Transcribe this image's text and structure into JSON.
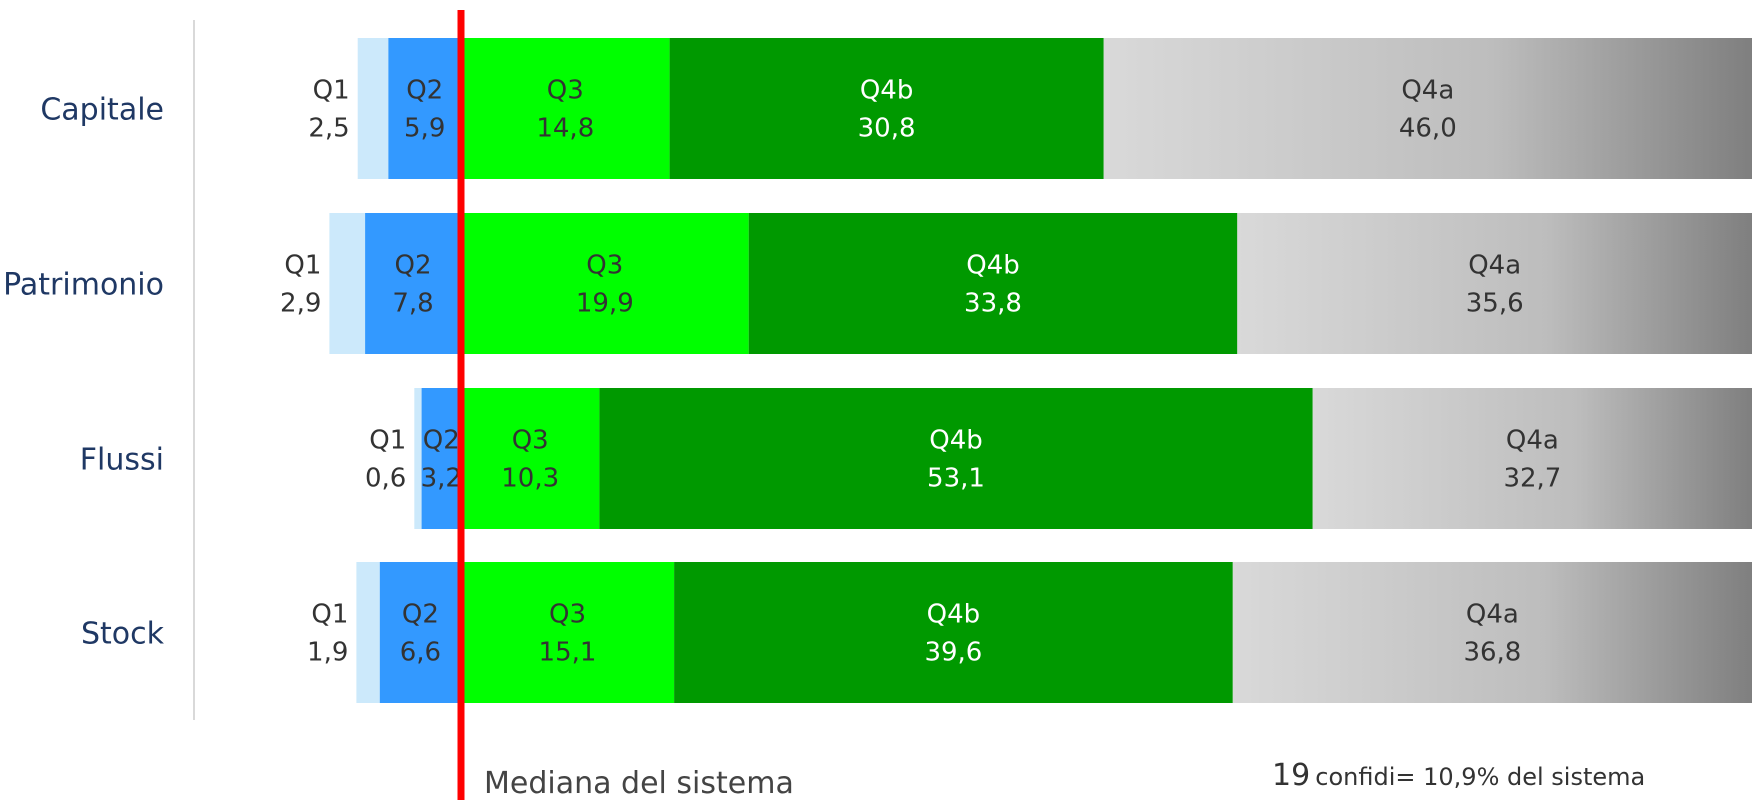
{
  "chart_data": {
    "type": "bar",
    "orientation": "horizontal",
    "stacked": true,
    "categories": [
      "Capitale",
      "Patrimonio",
      "Flussi",
      "Stock"
    ],
    "series": [
      {
        "name": "Q1",
        "values": [
          2.5,
          2.9,
          0.6,
          1.9
        ],
        "labels": [
          "2,5",
          "2,9",
          "0,6",
          "1,9"
        ],
        "color": "#cce9fb"
      },
      {
        "name": "Q2",
        "values": [
          5.9,
          7.8,
          3.2,
          6.6
        ],
        "labels": [
          "5,9",
          "7,8",
          "3,2",
          "6,6"
        ],
        "color": "#3399ff"
      },
      {
        "name": "Q3",
        "values": [
          14.8,
          19.9,
          10.3,
          15.1
        ],
        "labels": [
          "14,8",
          "19,9",
          "10,3",
          "15,1"
        ],
        "color": "#00ff00"
      },
      {
        "name": "Q4b",
        "values": [
          30.8,
          33.8,
          53.1,
          39.6
        ],
        "labels": [
          "30,8",
          "33,8",
          "53,1",
          "39,6"
        ],
        "color": "#009900"
      },
      {
        "name": "Q4a",
        "values": [
          46.0,
          35.6,
          32.7,
          36.8
        ],
        "labels": [
          "46,0",
          "35,6",
          "32,7",
          "36,8"
        ],
        "color": "#d9d9d9"
      }
    ],
    "reference_line": {
      "label": "Mediana del sistema",
      "color": "#ff0000"
    },
    "legend": "none",
    "grid": false
  },
  "colors": {
    "category_label": "#1f3864",
    "segment_text_dark": "#333333",
    "segment_text_light": "#ffffff",
    "q4a_gradient_end": "#7f7f7f",
    "axis_line": "#d9d9d9"
  },
  "annotation": {
    "count": "19",
    "text": "confidi= 10,9% del sistema"
  }
}
